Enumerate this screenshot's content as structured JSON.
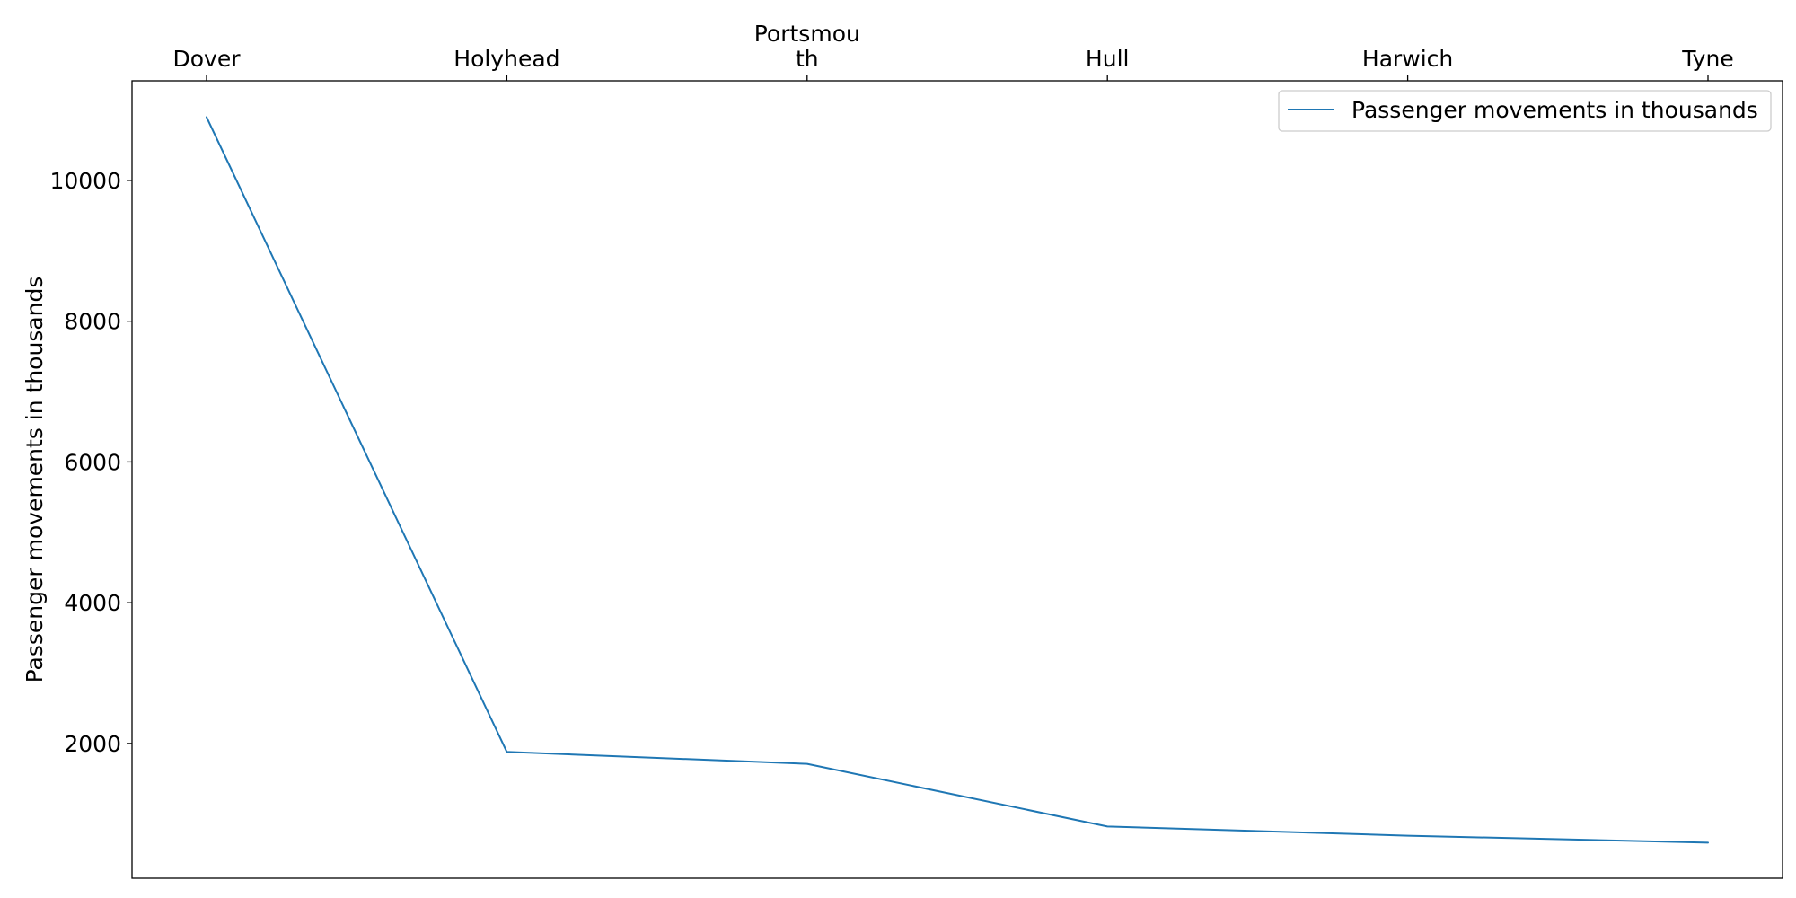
{
  "chart_data": {
    "type": "line",
    "title": "",
    "xlabel": "",
    "ylabel": "Passenger movements in thousands",
    "categories": [
      "Dover",
      "Holyhead",
      "Portsmouth",
      "Hull",
      "Harwich",
      "Tyne"
    ],
    "category_label_lines": [
      [
        "Dover"
      ],
      [
        "Holyhead"
      ],
      [
        "Portsmou",
        "th"
      ],
      [
        "Hull"
      ],
      [
        "Harwich"
      ],
      [
        "Tyne"
      ]
    ],
    "x_tick_position": "top",
    "series": [
      {
        "name": "Passenger movements in thousands",
        "color": "#1f77b4",
        "values": [
          10900,
          1880,
          1710,
          820,
          690,
          590
        ]
      }
    ],
    "yticks": [
      2000,
      4000,
      6000,
      8000,
      10000
    ],
    "ylim": [
      85,
      11415
    ],
    "grid": false,
    "legend_position": "top-right"
  }
}
